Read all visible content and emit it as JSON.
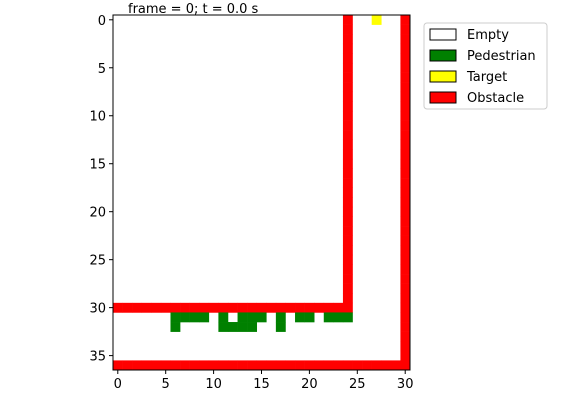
{
  "chart_data": {
    "type": "heatmap",
    "title": "frame = 0; t = 0.0 s",
    "xlim": [
      -0.5,
      30.5
    ],
    "ylim": [
      36.5,
      -0.5
    ],
    "xticks": [
      0,
      5,
      10,
      15,
      20,
      25,
      30
    ],
    "yticks": [
      0,
      5,
      10,
      15,
      20,
      25,
      30,
      35
    ],
    "legend_position": "upper-right-outside",
    "legend": [
      {
        "label": "Empty",
        "color": "#ffffff"
      },
      {
        "label": "Pedestrian",
        "color": "#008000"
      },
      {
        "label": "Target",
        "color": "#ffff00"
      },
      {
        "label": "Obstacle",
        "color": "#ff0000"
      }
    ],
    "cells": {
      "obstacle": [
        [
          24,
          0
        ],
        [
          24,
          1
        ],
        [
          24,
          2
        ],
        [
          24,
          3
        ],
        [
          24,
          4
        ],
        [
          24,
          5
        ],
        [
          24,
          6
        ],
        [
          24,
          7
        ],
        [
          24,
          8
        ],
        [
          24,
          9
        ],
        [
          24,
          10
        ],
        [
          24,
          11
        ],
        [
          24,
          12
        ],
        [
          24,
          13
        ],
        [
          24,
          14
        ],
        [
          24,
          15
        ],
        [
          24,
          16
        ],
        [
          24,
          17
        ],
        [
          24,
          18
        ],
        [
          24,
          19
        ],
        [
          24,
          20
        ],
        [
          24,
          21
        ],
        [
          24,
          22
        ],
        [
          24,
          23
        ],
        [
          24,
          24
        ],
        [
          24,
          25
        ],
        [
          24,
          26
        ],
        [
          24,
          27
        ],
        [
          24,
          28
        ],
        [
          24,
          29
        ],
        [
          24,
          30
        ],
        [
          30,
          0
        ],
        [
          30,
          1
        ],
        [
          30,
          2
        ],
        [
          30,
          3
        ],
        [
          30,
          4
        ],
        [
          30,
          5
        ],
        [
          30,
          6
        ],
        [
          30,
          7
        ],
        [
          30,
          8
        ],
        [
          30,
          9
        ],
        [
          30,
          10
        ],
        [
          30,
          11
        ],
        [
          30,
          12
        ],
        [
          30,
          13
        ],
        [
          30,
          14
        ],
        [
          30,
          15
        ],
        [
          30,
          16
        ],
        [
          30,
          17
        ],
        [
          30,
          18
        ],
        [
          30,
          19
        ],
        [
          30,
          20
        ],
        [
          30,
          21
        ],
        [
          30,
          22
        ],
        [
          30,
          23
        ],
        [
          30,
          24
        ],
        [
          30,
          25
        ],
        [
          30,
          26
        ],
        [
          30,
          27
        ],
        [
          30,
          28
        ],
        [
          30,
          29
        ],
        [
          30,
          30
        ],
        [
          30,
          31
        ],
        [
          30,
          32
        ],
        [
          30,
          33
        ],
        [
          30,
          34
        ],
        [
          30,
          35
        ],
        [
          30,
          36
        ],
        [
          0,
          30
        ],
        [
          1,
          30
        ],
        [
          2,
          30
        ],
        [
          3,
          30
        ],
        [
          4,
          30
        ],
        [
          5,
          30
        ],
        [
          6,
          30
        ],
        [
          7,
          30
        ],
        [
          8,
          30
        ],
        [
          9,
          30
        ],
        [
          10,
          30
        ],
        [
          11,
          30
        ],
        [
          12,
          30
        ],
        [
          13,
          30
        ],
        [
          14,
          30
        ],
        [
          15,
          30
        ],
        [
          16,
          30
        ],
        [
          17,
          30
        ],
        [
          18,
          30
        ],
        [
          19,
          30
        ],
        [
          20,
          30
        ],
        [
          21,
          30
        ],
        [
          22,
          30
        ],
        [
          23,
          30
        ],
        [
          0,
          36
        ],
        [
          1,
          36
        ],
        [
          2,
          36
        ],
        [
          3,
          36
        ],
        [
          4,
          36
        ],
        [
          5,
          36
        ],
        [
          6,
          36
        ],
        [
          7,
          36
        ],
        [
          8,
          36
        ],
        [
          9,
          36
        ],
        [
          10,
          36
        ],
        [
          11,
          36
        ],
        [
          12,
          36
        ],
        [
          13,
          36
        ],
        [
          14,
          36
        ],
        [
          15,
          36
        ],
        [
          16,
          36
        ],
        [
          17,
          36
        ],
        [
          18,
          36
        ],
        [
          19,
          36
        ],
        [
          20,
          36
        ],
        [
          21,
          36
        ],
        [
          22,
          36
        ],
        [
          23,
          36
        ],
        [
          24,
          36
        ],
        [
          25,
          36
        ],
        [
          26,
          36
        ],
        [
          27,
          36
        ],
        [
          28,
          36
        ],
        [
          29,
          36
        ]
      ],
      "pedestrian": [
        [
          6,
          31
        ],
        [
          7,
          31
        ],
        [
          8,
          31
        ],
        [
          9,
          31
        ],
        [
          6,
          32
        ],
        [
          11,
          31
        ],
        [
          11,
          32
        ],
        [
          12,
          32
        ],
        [
          13,
          31
        ],
        [
          13,
          32
        ],
        [
          14,
          31
        ],
        [
          14,
          32
        ],
        [
          15,
          31
        ],
        [
          17,
          31
        ],
        [
          17,
          32
        ],
        [
          19,
          31
        ],
        [
          20,
          31
        ],
        [
          22,
          31
        ],
        [
          23,
          31
        ],
        [
          24,
          31
        ]
      ],
      "target": [
        [
          27,
          0
        ]
      ]
    }
  }
}
